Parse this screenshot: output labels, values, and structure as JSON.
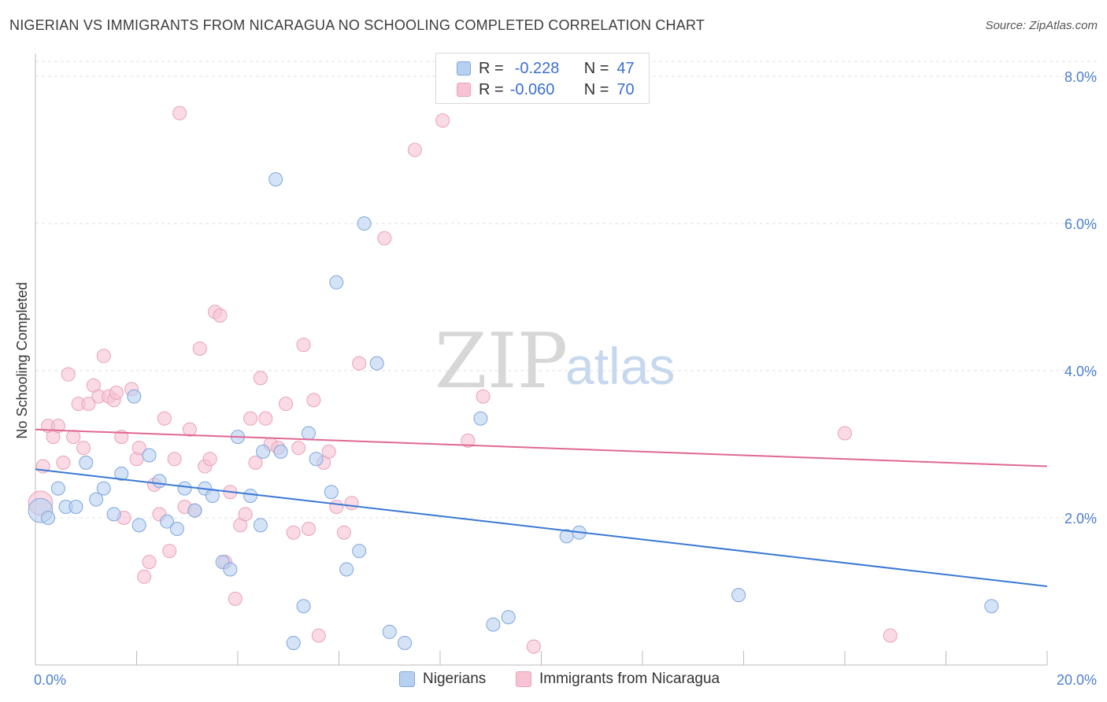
{
  "title": "NIGERIAN VS IMMIGRANTS FROM NICARAGUA NO SCHOOLING COMPLETED CORRELATION CHART",
  "source": "Source: ZipAtlas.com",
  "watermark": {
    "zip": "ZIP",
    "atlas": "atlas"
  },
  "legend": {
    "r_label": "R =",
    "n_label": "N =",
    "entries": [
      {
        "r": "-0.228",
        "n": "47"
      },
      {
        "r": "-0.060",
        "n": "70"
      }
    ]
  },
  "bottom_legend": [
    "Nigerians",
    "Immigrants from Nicaragua"
  ],
  "colors": {
    "blue_fill": "#b8d0f0",
    "blue_stroke": "#7fa6dc",
    "blue_line": "#3a78d4",
    "pink_fill": "#f7c3d3",
    "pink_stroke": "#eaa0b9",
    "pink_line": "#e06890",
    "axis_text": "#4a7fd0",
    "grid": "#e1e1e1"
  },
  "chart_data": {
    "type": "scatter",
    "title": "NIGERIAN VS IMMIGRANTS FROM NICARAGUA NO SCHOOLING COMPLETED CORRELATION CHART",
    "xlabel": "",
    "ylabel": "No Schooling Completed",
    "xlim": [
      0,
      20
    ],
    "ylim": [
      0,
      8.3
    ],
    "x_ticks": [
      "0.0%",
      "20.0%"
    ],
    "y_ticks": [
      {
        "value": 2,
        "label": "2.0%"
      },
      {
        "value": 4,
        "label": "4.0%"
      },
      {
        "value": 6,
        "label": "6.0%"
      },
      {
        "value": 8,
        "label": "8.0%"
      }
    ],
    "grid": true,
    "legend_position": "top-center",
    "series": [
      {
        "name": "Nigerians",
        "r": -0.228,
        "n": 47,
        "trend": {
          "x": [
            0,
            20
          ],
          "y": [
            2.66,
            1.07
          ]
        },
        "points": [
          [
            0.1,
            2.1
          ],
          [
            0.25,
            2.0
          ],
          [
            0.45,
            2.4
          ],
          [
            0.6,
            2.15
          ],
          [
            0.8,
            2.15
          ],
          [
            1.0,
            2.75
          ],
          [
            1.2,
            2.25
          ],
          [
            1.35,
            2.4
          ],
          [
            1.55,
            2.05
          ],
          [
            1.7,
            2.6
          ],
          [
            1.95,
            3.65
          ],
          [
            2.05,
            1.9
          ],
          [
            2.25,
            2.85
          ],
          [
            2.45,
            2.5
          ],
          [
            2.6,
            1.95
          ],
          [
            2.8,
            1.85
          ],
          [
            2.95,
            2.4
          ],
          [
            3.15,
            2.1
          ],
          [
            3.35,
            2.4
          ],
          [
            3.5,
            2.3
          ],
          [
            3.7,
            1.4
          ],
          [
            3.85,
            1.3
          ],
          [
            4.0,
            3.1
          ],
          [
            4.25,
            2.3
          ],
          [
            4.45,
            1.9
          ],
          [
            4.5,
            2.9
          ],
          [
            4.75,
            6.6
          ],
          [
            4.85,
            2.9
          ],
          [
            5.1,
            0.3
          ],
          [
            5.3,
            0.8
          ],
          [
            5.4,
            3.15
          ],
          [
            5.55,
            2.8
          ],
          [
            5.85,
            2.35
          ],
          [
            5.95,
            5.2
          ],
          [
            6.15,
            1.3
          ],
          [
            6.4,
            1.55
          ],
          [
            6.5,
            6.0
          ],
          [
            6.75,
            4.1
          ],
          [
            7.0,
            0.45
          ],
          [
            7.3,
            0.3
          ],
          [
            8.8,
            3.35
          ],
          [
            9.05,
            0.55
          ],
          [
            9.35,
            0.65
          ],
          [
            10.5,
            1.75
          ],
          [
            10.75,
            1.8
          ],
          [
            13.9,
            0.95
          ],
          [
            18.9,
            0.8
          ]
        ]
      },
      {
        "name": "Immigrants from Nicaragua",
        "r": -0.06,
        "n": 70,
        "trend": {
          "x": [
            0,
            20
          ],
          "y": [
            3.2,
            2.7
          ]
        },
        "points": [
          [
            0.1,
            2.2
          ],
          [
            0.15,
            2.7
          ],
          [
            0.25,
            3.25
          ],
          [
            0.35,
            3.1
          ],
          [
            0.45,
            3.25
          ],
          [
            0.55,
            2.75
          ],
          [
            0.65,
            3.95
          ],
          [
            0.75,
            3.1
          ],
          [
            0.85,
            3.55
          ],
          [
            0.95,
            2.95
          ],
          [
            1.05,
            3.55
          ],
          [
            1.15,
            3.8
          ],
          [
            1.25,
            3.65
          ],
          [
            1.35,
            4.2
          ],
          [
            1.45,
            3.65
          ],
          [
            1.55,
            3.6
          ],
          [
            1.6,
            3.7
          ],
          [
            1.7,
            3.1
          ],
          [
            1.75,
            2.0
          ],
          [
            1.9,
            3.75
          ],
          [
            2.0,
            2.8
          ],
          [
            2.05,
            2.95
          ],
          [
            2.15,
            1.2
          ],
          [
            2.25,
            1.4
          ],
          [
            2.35,
            2.45
          ],
          [
            2.45,
            2.05
          ],
          [
            2.55,
            3.35
          ],
          [
            2.65,
            1.55
          ],
          [
            2.75,
            2.8
          ],
          [
            2.85,
            7.5
          ],
          [
            2.95,
            2.15
          ],
          [
            3.05,
            3.2
          ],
          [
            3.15,
            2.1
          ],
          [
            3.25,
            4.3
          ],
          [
            3.35,
            2.7
          ],
          [
            3.45,
            2.8
          ],
          [
            3.55,
            4.8
          ],
          [
            3.65,
            4.75
          ],
          [
            3.75,
            1.4
          ],
          [
            3.85,
            2.35
          ],
          [
            3.95,
            0.9
          ],
          [
            4.05,
            1.9
          ],
          [
            4.15,
            2.05
          ],
          [
            4.25,
            3.35
          ],
          [
            4.35,
            2.75
          ],
          [
            4.45,
            3.9
          ],
          [
            4.55,
            3.35
          ],
          [
            4.65,
            3.0
          ],
          [
            4.8,
            2.95
          ],
          [
            4.95,
            3.55
          ],
          [
            5.1,
            1.8
          ],
          [
            5.2,
            2.95
          ],
          [
            5.3,
            4.35
          ],
          [
            5.4,
            1.85
          ],
          [
            5.5,
            3.6
          ],
          [
            5.6,
            0.4
          ],
          [
            5.7,
            2.75
          ],
          [
            5.8,
            2.9
          ],
          [
            5.95,
            2.15
          ],
          [
            6.1,
            1.8
          ],
          [
            6.25,
            2.2
          ],
          [
            6.4,
            4.1
          ],
          [
            6.9,
            5.8
          ],
          [
            7.5,
            7.0
          ],
          [
            8.05,
            7.4
          ],
          [
            8.55,
            3.05
          ],
          [
            8.85,
            3.65
          ],
          [
            9.85,
            0.25
          ],
          [
            16.0,
            3.15
          ],
          [
            16.9,
            0.4
          ]
        ]
      }
    ]
  }
}
